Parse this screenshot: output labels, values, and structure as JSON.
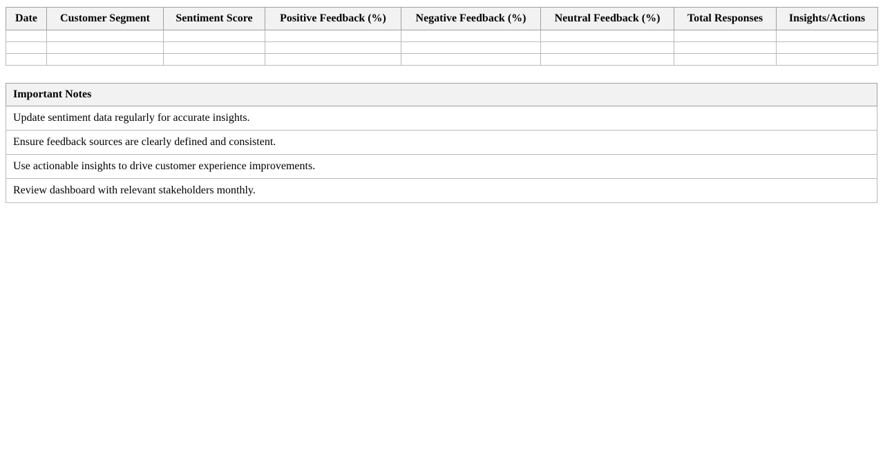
{
  "dashboard_table": {
    "columns": [
      "Date",
      "Customer Segment",
      "Sentiment Score",
      "Positive Feedback (%)",
      "Negative Feedback (%)",
      "Neutral Feedback (%)",
      "Total Responses",
      "Insights/Actions"
    ],
    "rows": [
      [
        "",
        "",
        "",
        "",
        "",
        "",
        "",
        ""
      ],
      [
        "",
        "",
        "",
        "",
        "",
        "",
        "",
        ""
      ],
      [
        "",
        "",
        "",
        "",
        "",
        "",
        "",
        ""
      ]
    ]
  },
  "notes_table": {
    "header": "Important Notes",
    "notes": [
      "Update sentiment data regularly for accurate insights.",
      "Ensure feedback sources are clearly defined and consistent.",
      "Use actionable insights to drive customer experience improvements.",
      "Review dashboard with relevant stakeholders monthly."
    ]
  },
  "colors": {
    "header_background": "#f2f2f2",
    "border_outer": "#9f9f9f",
    "border_inner": "#b9b9b9",
    "text": "#000000",
    "page_background": "#ffffff"
  }
}
